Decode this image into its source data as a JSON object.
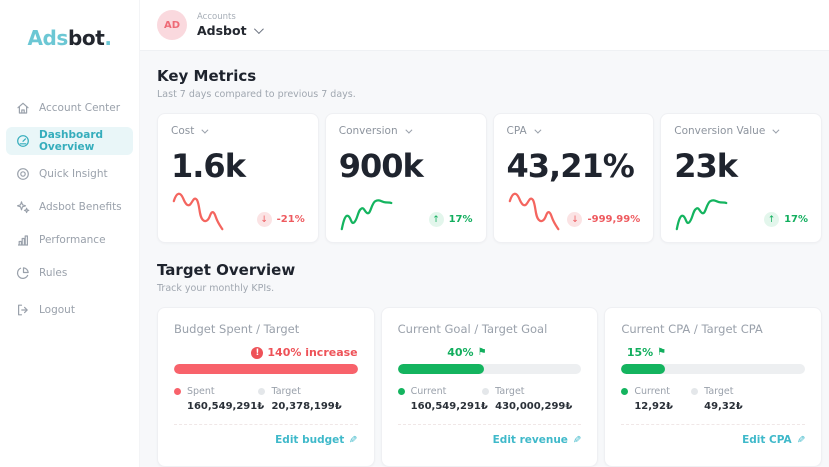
{
  "brand": {
    "prefix": "Ads",
    "suffix": "bot",
    "dot": "."
  },
  "sidebar": {
    "items": [
      {
        "label": "Account Center",
        "icon": "home-icon"
      },
      {
        "label": "Dashboard Overview",
        "icon": "gauge-icon"
      },
      {
        "label": "Quick Insight",
        "icon": "insight-icon"
      },
      {
        "label": "Adsbot Benefits",
        "icon": "sparkle-icon"
      },
      {
        "label": "Performance",
        "icon": "bar-chart-icon"
      },
      {
        "label": "Rules",
        "icon": "pie-chart-icon"
      },
      {
        "label": "Logout",
        "icon": "logout-icon"
      }
    ]
  },
  "header": {
    "avatar_initials": "AD",
    "account_label": "Accounts",
    "account_name": "Adsbot"
  },
  "key_metrics": {
    "title": "Key Metrics",
    "subtitle": "Last 7 days compared to previous 7 days.",
    "cards": [
      {
        "label": "Cost",
        "value": "1.6k",
        "change": "-21%",
        "trend": "down"
      },
      {
        "label": "Conversion",
        "value": "900k",
        "change": "17%",
        "trend": "up"
      },
      {
        "label": "CPA",
        "value": "43,21%",
        "change": "-999,99%",
        "trend": "down"
      },
      {
        "label": "Conversion Value",
        "value": "23k",
        "change": "17%",
        "trend": "up"
      }
    ]
  },
  "target_overview": {
    "title": "Target Overview",
    "subtitle": "Track your monthly KPIs.",
    "cards": [
      {
        "title": "Budget Spent / Target",
        "status": "140% increase",
        "status_type": "alert",
        "progress_pct": 100,
        "legend": [
          {
            "label": "Spent",
            "value": "160,549,291₺"
          },
          {
            "label": "Target",
            "value": "20,378,199₺"
          }
        ],
        "edit_label": "Edit budget"
      },
      {
        "title": "Current Goal / Target Goal",
        "status": "40%",
        "status_type": "goal",
        "progress_pct": 47,
        "legend": [
          {
            "label": "Current",
            "value": "160,549,291₺"
          },
          {
            "label": "Target",
            "value": "430,000,299₺"
          }
        ],
        "edit_label": "Edit revenue"
      },
      {
        "title": "Current CPA / Target CPA",
        "status": "15%",
        "status_type": "goal",
        "progress_pct": 24,
        "legend": [
          {
            "label": "Current",
            "value": "12,92₺"
          },
          {
            "label": "Target",
            "value": "49,32₺"
          }
        ],
        "edit_label": "Edit CPA"
      }
    ]
  },
  "colors": {
    "accent_teal": "#3fb9ca",
    "logo_teal": "#6cc7d4",
    "dark": "#1f242e",
    "red": "#ee5a5f",
    "green": "#12ae5e",
    "bar_red": "#f8626b",
    "bar_green": "#14b45f"
  }
}
